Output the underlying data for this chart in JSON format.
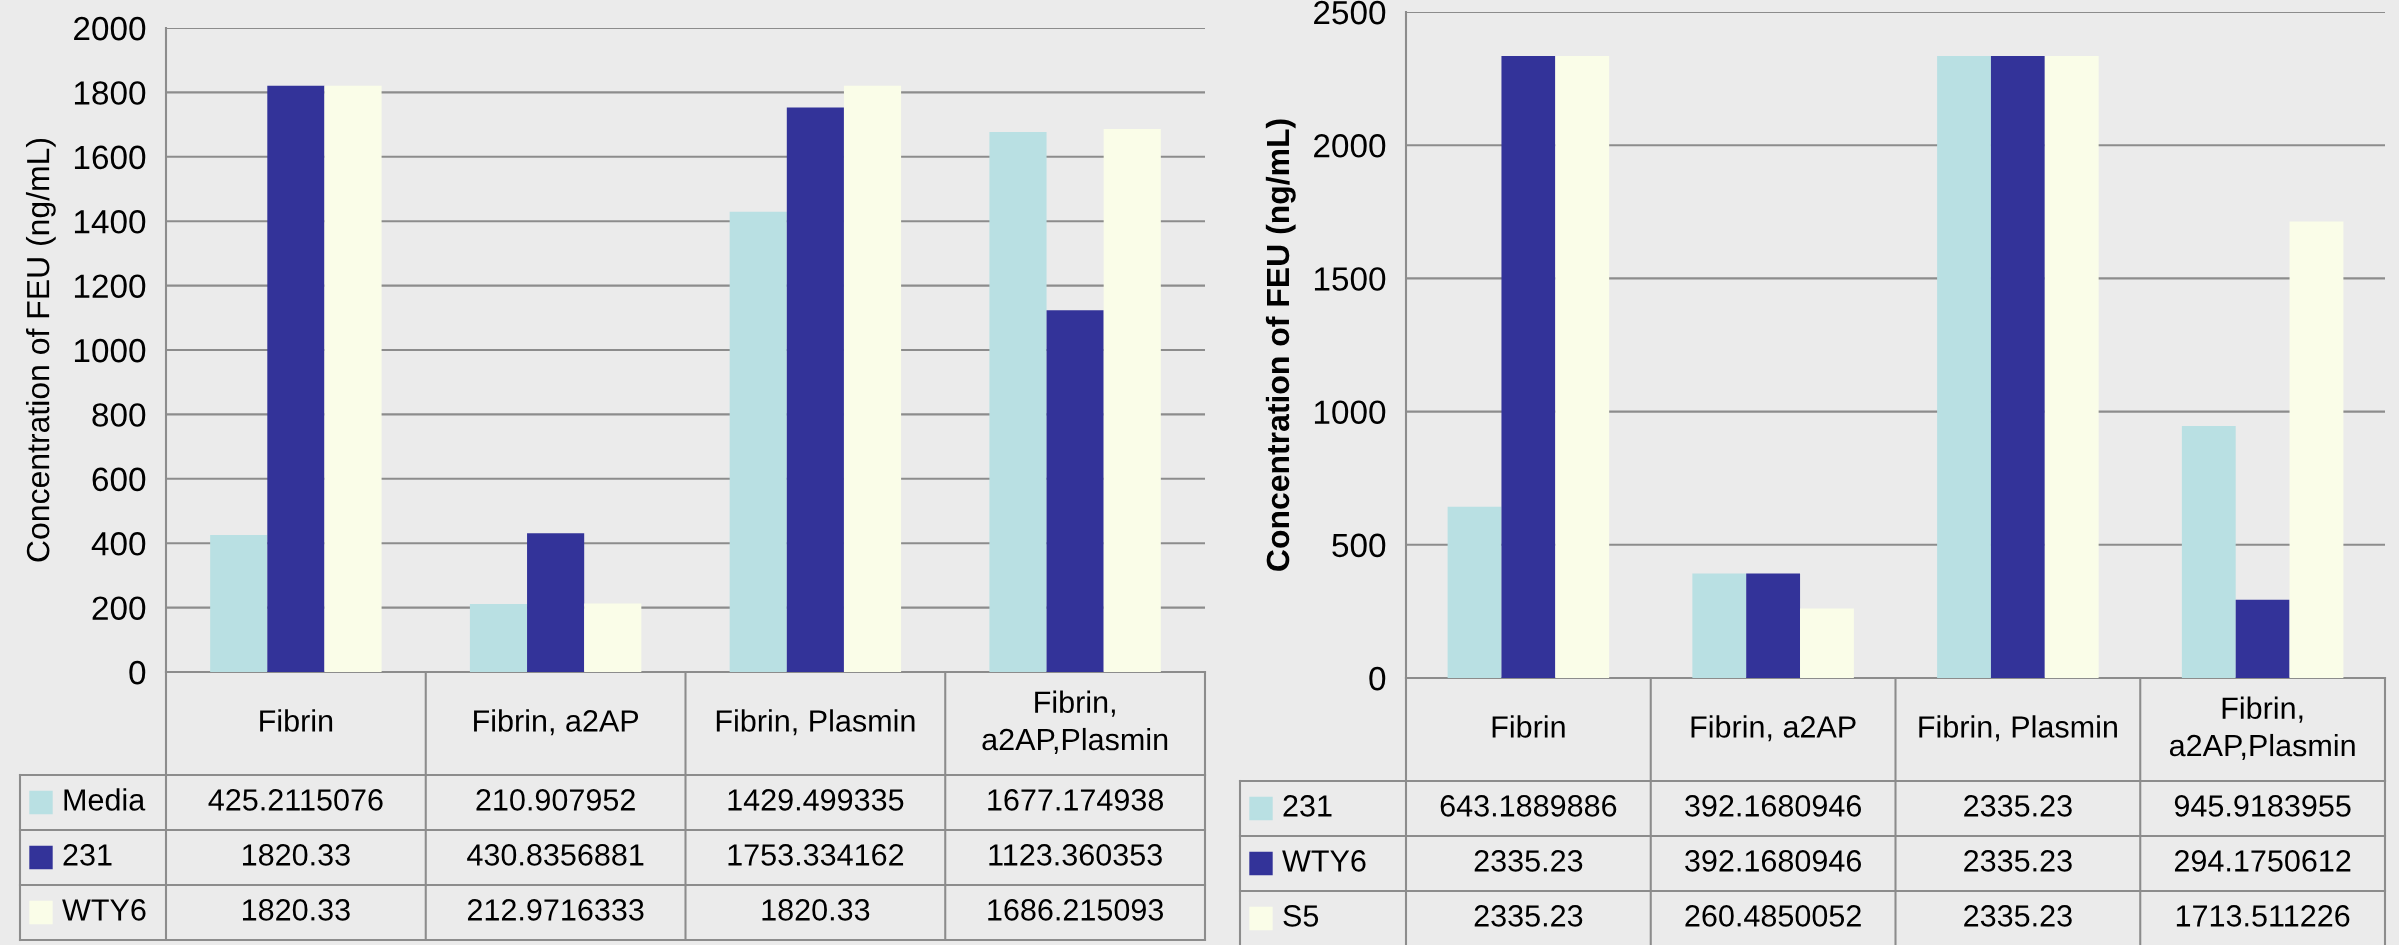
{
  "chart_data": [
    {
      "type": "bar",
      "ylabel": "Concentration of FEU (ng/mL)",
      "categories": [
        "Fibrin",
        "Fibrin, a2AP",
        "Fibrin, Plasmin",
        "Fibrin,\na2AP,Plasmin"
      ],
      "ylim": [
        0,
        2000
      ],
      "yticks": [
        0,
        200,
        400,
        600,
        800,
        1000,
        1200,
        1400,
        1600,
        1800,
        2000
      ],
      "grid": "y",
      "legend": "bottom",
      "data_labels": true,
      "series": [
        {
          "name": "Media",
          "color": "#b9e0e3",
          "values": [
            425.2115076,
            210.907952,
            1429.499335,
            1677.174938
          ]
        },
        {
          "name": "231",
          "color": "#333399",
          "values": [
            1820.33,
            430.8356881,
            1753.334162,
            1123.360353
          ]
        },
        {
          "name": "WTY6",
          "color": "#fafde8",
          "values": [
            1820.33,
            212.9716333,
            1820.33,
            1686.215093
          ]
        }
      ]
    },
    {
      "type": "bar",
      "ylabel": "Concentration of FEU (ng/mL)",
      "categories": [
        "Fibrin",
        "Fibrin, a2AP",
        "Fibrin, Plasmin",
        "Fibrin,\na2AP,Plasmin"
      ],
      "ylim": [
        0,
        2500
      ],
      "yticks": [
        0,
        500,
        1000,
        1500,
        2000,
        2500
      ],
      "grid": "y",
      "legend": "bottom",
      "data_labels": true,
      "series": [
        {
          "name": "231",
          "color": "#b9e0e3",
          "values": [
            643.1889886,
            392.1680946,
            2335.23,
            945.9183955
          ]
        },
        {
          "name": "WTY6",
          "color": "#333399",
          "values": [
            2335.23,
            392.1680946,
            2335.23,
            294.1750612
          ]
        },
        {
          "name": "S5",
          "color": "#fafde8",
          "values": [
            2335.23,
            260.4850052,
            2335.23,
            1713.511226
          ]
        }
      ]
    }
  ]
}
